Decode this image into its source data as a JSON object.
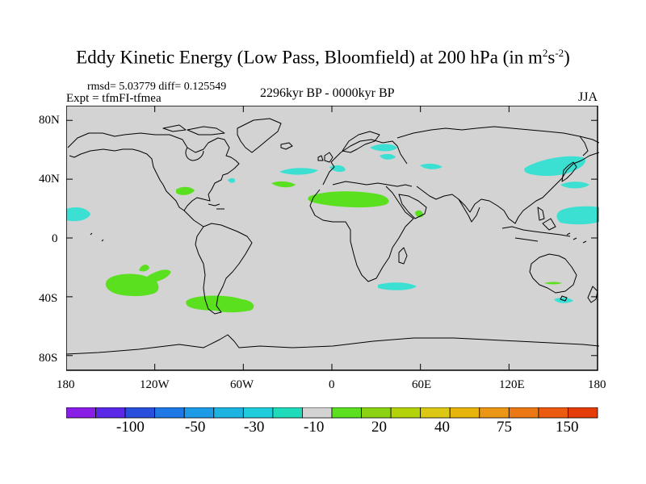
{
  "title": {
    "main": "Eddy Kinetic Energy (Low Pass, Bloomfield) at 200 hPa (in m",
    "sup1": "2",
    "mid": "s",
    "sup2": "-2",
    "end": ")"
  },
  "stats": "rmsd= 5.03779 diff= 0.125549",
  "experiment": "Expt = tfmFI-tfmea",
  "period": "2296kyr BP - 0000kyr BP",
  "season": "JJA",
  "lat_ticks": [
    "80N",
    "40N",
    "0",
    "40S",
    "80S"
  ],
  "lon_ticks": [
    "180",
    "120W",
    "60W",
    "0",
    "60E",
    "120E",
    "180"
  ],
  "colors": {
    "land_ocean_fill": "#d3d3d3",
    "coast": "#000000",
    "positive_shade": "#5ae01e",
    "negative_shade": "#3ce0d2"
  },
  "colorbar": {
    "colors": [
      "#8a1ee6",
      "#5a28e6",
      "#2850dc",
      "#1e78e6",
      "#1e9be6",
      "#1eb4e1",
      "#1ecddc",
      "#1edcb9",
      "#d3d3d3",
      "#5ae01e",
      "#8cd214",
      "#b4d20a",
      "#dcc814",
      "#e6b40a",
      "#eb9614",
      "#eb7814",
      "#eb5a0f",
      "#e63c0a"
    ],
    "labels": [
      "-100",
      "-50",
      "-30",
      "-10",
      "20",
      "40",
      "75",
      "150"
    ]
  }
}
